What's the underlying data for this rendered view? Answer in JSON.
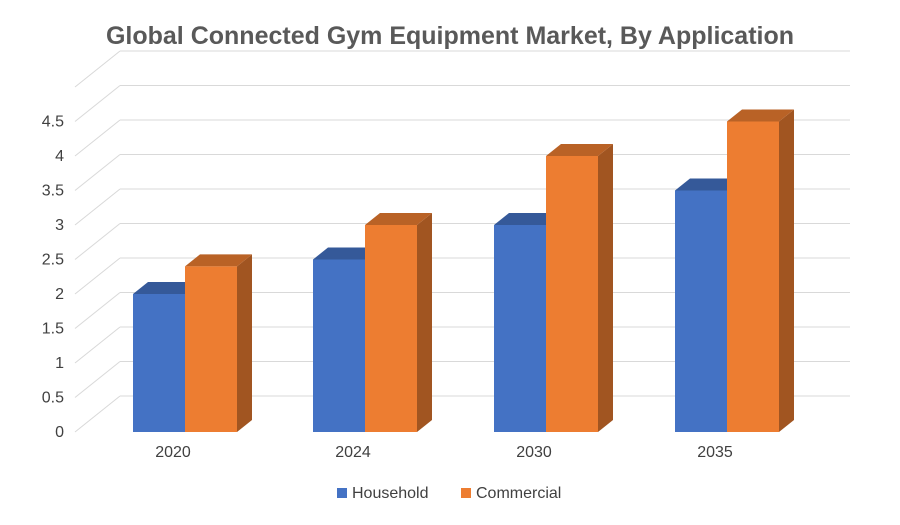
{
  "chart_data": {
    "type": "bar",
    "title": "Global Connected Gym Equipment Market, By Application",
    "categories": [
      "2020",
      "2024",
      "2030",
      "2035"
    ],
    "series": [
      {
        "name": "Household",
        "values": [
          2.0,
          2.5,
          3.0,
          3.5
        ],
        "color": "#4472C4"
      },
      {
        "name": "Commercial",
        "values": [
          2.4,
          3.0,
          4.0,
          4.5
        ],
        "color": "#ED7D31"
      }
    ],
    "y_ticks": [
      "0",
      "0.5",
      "1",
      "1.5",
      "2",
      "2.5",
      "3",
      "3.5",
      "4",
      "4.5"
    ],
    "ylim": [
      0,
      5
    ],
    "grid": true,
    "legend_position": "bottom",
    "style": "3d-clustered-column"
  }
}
